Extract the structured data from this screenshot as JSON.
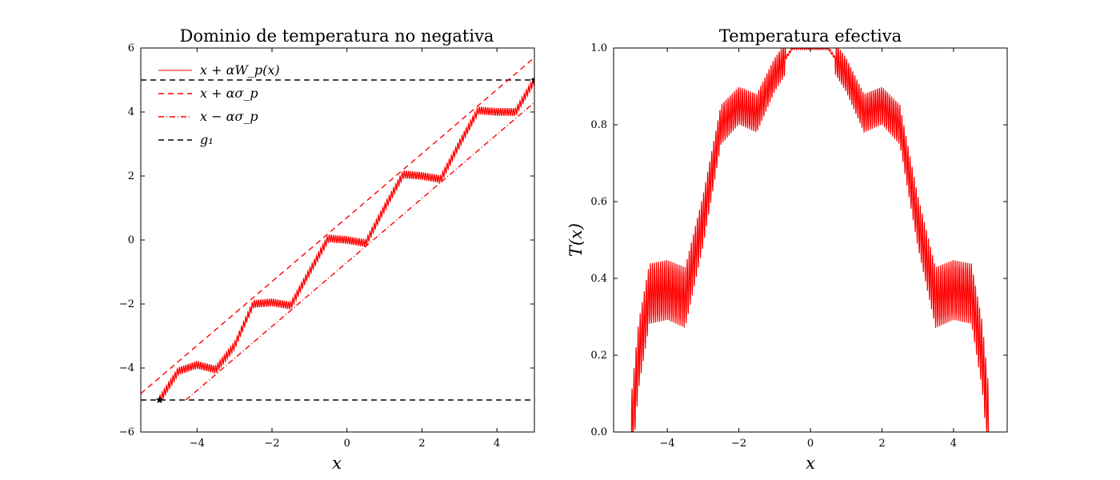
{
  "chart_data": [
    {
      "type": "line",
      "title": "Dominio de temperatura no negativa",
      "xlabel": "x",
      "ylabel": "",
      "xlim": [
        -5.5,
        5
      ],
      "ylim": [
        -6,
        6
      ],
      "xticks": [
        -4,
        -2,
        0,
        2,
        4
      ],
      "yticks": [
        -6,
        -4,
        -2,
        0,
        2,
        4,
        6
      ],
      "xtick_labels": [
        "−4",
        "−2",
        "0",
        "2",
        "4"
      ],
      "ytick_labels": [
        "−6",
        "−4",
        "−2",
        "0",
        "2",
        "4",
        "6"
      ],
      "legend": {
        "placement": "top-left",
        "entries": [
          {
            "label": "x + αW_p(x)",
            "color": "#ff0000",
            "style": "solid"
          },
          {
            "label": "x + ασ_p",
            "color": "#ff0000",
            "style": "dashed"
          },
          {
            "label": "x − ασ_p",
            "color": "#ff0000",
            "style": "dashdot"
          },
          {
            "label": "g₁",
            "color": "#000000",
            "style": "dashed"
          }
        ]
      },
      "series": [
        {
          "name": "x + αW_p(x)",
          "color": "#ff0000",
          "style": "solid",
          "x_range": [
            -5,
            5
          ],
          "description_points": [
            [
              -5,
              -5
            ],
            [
              -4.5,
              -4.1
            ],
            [
              -4,
              -3.9
            ],
            [
              -3.5,
              -4.05
            ],
            [
              -3,
              -3.3
            ],
            [
              -2.5,
              -2.0
            ],
            [
              -2,
              -1.95
            ],
            [
              -1.5,
              -2.05
            ],
            [
              -1,
              -1.0
            ],
            [
              -0.5,
              0.05
            ],
            [
              0,
              0.0
            ],
            [
              0.5,
              -0.1
            ],
            [
              1,
              1.0
            ],
            [
              1.5,
              2.05
            ],
            [
              2,
              2.0
            ],
            [
              2.5,
              1.9
            ],
            [
              3,
              3.0
            ],
            [
              3.5,
              4.05
            ],
            [
              4,
              4.0
            ],
            [
              4.5,
              4.0
            ],
            [
              5,
              5.0
            ]
          ]
        },
        {
          "name": "x + ασ_p",
          "color": "#ff0000",
          "style": "dashed",
          "x": [
            -5.5,
            5
          ],
          "y": [
            -4.8,
            5.7
          ]
        },
        {
          "name": "x − ασ_p",
          "color": "#ff0000",
          "style": "dashdot",
          "x": [
            -4.3,
            5
          ],
          "y": [
            -5.0,
            4.3
          ]
        },
        {
          "name": "g₁",
          "color": "#000000",
          "style": "dashed",
          "y_constant": [
            5,
            -5
          ]
        }
      ],
      "markers": [
        {
          "x": -5,
          "y": -5,
          "symbol": "star"
        },
        {
          "x": 5,
          "y": 5,
          "symbol": "star"
        }
      ]
    },
    {
      "type": "line",
      "title": "Temperatura efectiva",
      "xlabel": "x",
      "ylabel": "T(x)",
      "xlim": [
        -5.5,
        5.5
      ],
      "ylim": [
        0,
        1
      ],
      "xticks": [
        -4,
        -2,
        0,
        2,
        4
      ],
      "yticks": [
        0,
        0.2,
        0.4,
        0.6,
        0.8,
        1.0
      ],
      "xtick_labels": [
        "−4",
        "−2",
        "0",
        "2",
        "4"
      ],
      "ytick_labels": [
        "0.0",
        "0.2",
        "0.4",
        "0.6",
        "0.8",
        "1.0"
      ],
      "series": [
        {
          "name": "T(x)",
          "color": "#ff0000",
          "style": "solid",
          "x_range": [
            -5,
            5
          ],
          "description_points": [
            [
              -5,
              0.0
            ],
            [
              -4.8,
              0.2
            ],
            [
              -4.5,
              0.36
            ],
            [
              -4,
              0.37
            ],
            [
              -3.5,
              0.35
            ],
            [
              -3,
              0.55
            ],
            [
              -2.5,
              0.8
            ],
            [
              -2,
              0.85
            ],
            [
              -1.5,
              0.83
            ],
            [
              -1,
              0.93
            ],
            [
              -0.5,
              1.0
            ],
            [
              0,
              1.0
            ],
            [
              0.5,
              1.0
            ],
            [
              1,
              0.93
            ],
            [
              1.5,
              0.83
            ],
            [
              2,
              0.85
            ],
            [
              2.5,
              0.8
            ],
            [
              3,
              0.55
            ],
            [
              3.5,
              0.35
            ],
            [
              4,
              0.37
            ],
            [
              4.5,
              0.36
            ],
            [
              4.8,
              0.2
            ],
            [
              5,
              0.0
            ]
          ]
        }
      ]
    }
  ]
}
